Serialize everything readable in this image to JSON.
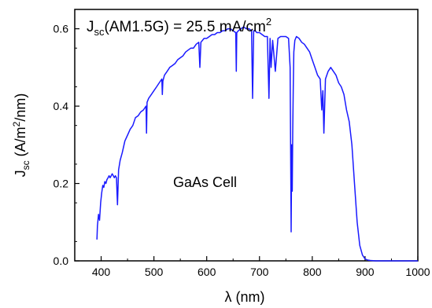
{
  "chart_data": {
    "type": "line",
    "title": "",
    "xlabel": "λ (nm)",
    "ylabel": {
      "main": "J",
      "sub": "sc",
      "unit_pre": " (A/m",
      "unit_sup": "2",
      "unit_post": "/nm)"
    },
    "xlim": [
      350,
      1000
    ],
    "ylim": [
      0,
      0.65
    ],
    "x_ticks": [
      400,
      500,
      600,
      700,
      800,
      900,
      1000
    ],
    "y_ticks": [
      0.0,
      0.2,
      0.4,
      0.6
    ],
    "x_tick_labels": [
      "400",
      "500",
      "600",
      "700",
      "800",
      "900",
      "1000"
    ],
    "y_tick_labels": [
      "0.0",
      "0.2",
      "0.4",
      "0.6"
    ],
    "grid": false,
    "color": "#1a1aff",
    "annotations": {
      "jsc": {
        "main": "J",
        "sub": "sc",
        "mid": "(AM1.5G) = 25.5 mA/cm",
        "sup": "2"
      },
      "cell_label": "GaAs Cell"
    },
    "series": [
      {
        "x": [
          392,
          393,
          395,
          397,
          399,
          401,
          403,
          405,
          407,
          409,
          411,
          413,
          415,
          417,
          419,
          421,
          423,
          425,
          427,
          429,
          431,
          433,
          436,
          440,
          445,
          450,
          455,
          460,
          465,
          470,
          475,
          480,
          485,
          486,
          487,
          490,
          495,
          500,
          505,
          510,
          515,
          516,
          517,
          520,
          525,
          530,
          535,
          540,
          545,
          550,
          555,
          560,
          565,
          570,
          575,
          580,
          585,
          587,
          589,
          592,
          595,
          600,
          605,
          610,
          615,
          620,
          625,
          630,
          635,
          640,
          645,
          650,
          655,
          656,
          657,
          660,
          665,
          670,
          675,
          680,
          685,
          687,
          689,
          692,
          695,
          700,
          705,
          710,
          715,
          718,
          720,
          722,
          725,
          730,
          735,
          740,
          745,
          750,
          755,
          758,
          760,
          761,
          762,
          763,
          764,
          765,
          767,
          770,
          775,
          780,
          785,
          790,
          795,
          800,
          805,
          810,
          815,
          818,
          820,
          822,
          825,
          830,
          835,
          840,
          845,
          850,
          855,
          860,
          865,
          870,
          875,
          880,
          885,
          890,
          895,
          900,
          905,
          910,
          920,
          930,
          950,
          1000
        ],
        "y": [
          0.055,
          0.09,
          0.12,
          0.105,
          0.15,
          0.175,
          0.195,
          0.19,
          0.205,
          0.2,
          0.21,
          0.215,
          0.22,
          0.215,
          0.22,
          0.225,
          0.22,
          0.215,
          0.22,
          0.215,
          0.145,
          0.235,
          0.26,
          0.28,
          0.31,
          0.325,
          0.34,
          0.35,
          0.37,
          0.375,
          0.385,
          0.39,
          0.4,
          0.33,
          0.41,
          0.42,
          0.43,
          0.44,
          0.45,
          0.46,
          0.47,
          0.43,
          0.465,
          0.48,
          0.49,
          0.5,
          0.505,
          0.51,
          0.52,
          0.525,
          0.53,
          0.54,
          0.545,
          0.55,
          0.55,
          0.56,
          0.565,
          0.5,
          0.565,
          0.57,
          0.575,
          0.575,
          0.58,
          0.585,
          0.585,
          0.59,
          0.59,
          0.595,
          0.595,
          0.6,
          0.6,
          0.595,
          0.59,
          0.49,
          0.59,
          0.595,
          0.6,
          0.605,
          0.6,
          0.6,
          0.595,
          0.42,
          0.595,
          0.595,
          0.59,
          0.59,
          0.585,
          0.58,
          0.58,
          0.42,
          0.575,
          0.5,
          0.57,
          0.49,
          0.575,
          0.58,
          0.58,
          0.58,
          0.575,
          0.5,
          0.075,
          0.3,
          0.18,
          0.33,
          0.45,
          0.54,
          0.57,
          0.58,
          0.575,
          0.565,
          0.56,
          0.55,
          0.54,
          0.52,
          0.5,
          0.48,
          0.47,
          0.39,
          0.44,
          0.33,
          0.47,
          0.49,
          0.5,
          0.49,
          0.48,
          0.46,
          0.45,
          0.43,
          0.39,
          0.36,
          0.3,
          0.2,
          0.1,
          0.04,
          0.015,
          0.005,
          0.002,
          0.001,
          0.0,
          0.0,
          0.0,
          0.0
        ]
      }
    ]
  }
}
